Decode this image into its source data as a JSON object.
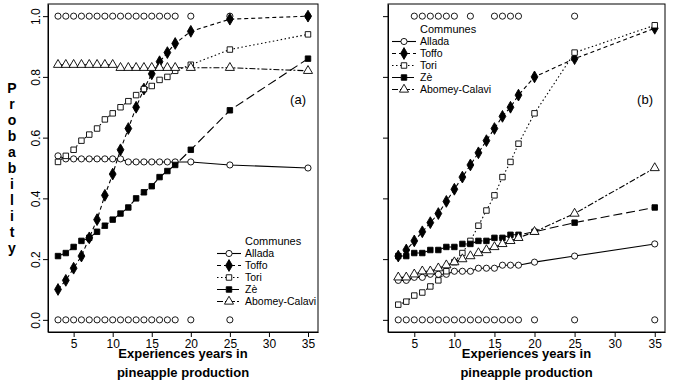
{
  "chart_data": [
    {
      "type": "line",
      "y_label": "Probability",
      "x_label": "Experiences years in\npineapple production",
      "annotation": "(a)",
      "legend_title": "Communes",
      "legend": "bottom-right",
      "grid": false,
      "xlim": [
        1.72,
        36.28
      ],
      "ylim": [
        -0.04,
        1.04
      ],
      "xticks": [
        5,
        10,
        15,
        20,
        25,
        30,
        35
      ],
      "yticks": [
        {
          "value": 0,
          "label": "0.0"
        },
        0.2,
        0.4,
        0.6,
        0.8,
        {
          "value": 1,
          "label": "1.0"
        }
      ],
      "x": [
        3,
        4,
        5,
        6,
        7,
        8,
        9,
        10,
        11,
        12,
        13,
        14,
        15,
        16,
        17,
        18,
        20,
        25,
        35
      ],
      "series": [
        {
          "name": "Allada",
          "color": "#000000",
          "marker": "circle-open",
          "line_style": "solid",
          "values": [
            0.54,
            0.53,
            0.53,
            0.53,
            0.53,
            0.53,
            0.53,
            0.53,
            0.53,
            0.52,
            0.52,
            0.52,
            0.52,
            0.52,
            0.52,
            0.52,
            0.52,
            0.51,
            0.5
          ]
        },
        {
          "name": "Toffo",
          "color": "#000000",
          "marker": "diamond",
          "line_style": "dashed",
          "values": [
            0.1,
            0.13,
            0.17,
            0.21,
            0.27,
            0.33,
            0.41,
            0.48,
            0.56,
            0.63,
            0.7,
            0.76,
            0.81,
            0.85,
            0.88,
            0.91,
            0.95,
            0.99,
            1
          ]
        },
        {
          "name": "Tori",
          "color": "#000000",
          "marker": "square-open",
          "line_style": "dotted",
          "values": [
            0.52,
            0.54,
            0.56,
            0.59,
            0.61,
            0.63,
            0.66,
            0.68,
            0.7,
            0.72,
            0.74,
            0.76,
            0.77,
            0.79,
            0.8,
            0.82,
            0.84,
            0.89,
            0.94
          ]
        },
        {
          "name": "Zè",
          "color": "#000000",
          "marker": "square",
          "line_style": "longdash",
          "values": [
            0.21,
            0.22,
            0.24,
            0.26,
            0.27,
            0.29,
            0.31,
            0.33,
            0.35,
            0.37,
            0.4,
            0.42,
            0.44,
            0.47,
            0.49,
            0.51,
            0.56,
            0.69,
            0.86
          ]
        },
        {
          "name": "Abomey-Calavi",
          "color": "#000000",
          "marker": "triangle-open",
          "line_style": "twodash",
          "values": [
            0.84,
            0.84,
            0.84,
            0.84,
            0.84,
            0.84,
            0.84,
            0.84,
            0.83,
            0.83,
            0.83,
            0.83,
            0.83,
            0.83,
            0.83,
            0.83,
            0.83,
            0.83,
            0.82
          ]
        }
      ],
      "observed": {
        "marker": "circle-open",
        "x": [
          3,
          4,
          5,
          6,
          7,
          8,
          9,
          10,
          11,
          12,
          13,
          14,
          15,
          16,
          17,
          18,
          20,
          25,
          35,
          3,
          4,
          5,
          6,
          7,
          8,
          9,
          10,
          11,
          12,
          13,
          14,
          15,
          16,
          17,
          18,
          20,
          25
        ],
        "values": [
          1,
          1,
          1,
          1,
          1,
          1,
          1,
          1,
          1,
          1,
          1,
          1,
          1,
          1,
          1,
          1,
          1,
          1,
          1,
          0,
          0,
          0,
          0,
          0,
          0,
          0,
          0,
          0,
          0,
          0,
          0,
          0,
          0,
          0,
          0,
          0,
          0
        ]
      }
    },
    {
      "type": "line",
      "x_label": "Experiences years in\npineapple production",
      "annotation": "(b)",
      "legend_title": "Communes",
      "legend": "top-left",
      "grid": false,
      "tick_labels": "x",
      "xlim": [
        1.72,
        36.28
      ],
      "ylim": [
        -0.04,
        1.04
      ],
      "xticks": [
        5,
        10,
        15,
        20,
        25,
        30,
        35
      ],
      "yticks": [
        0,
        0.2,
        0.4,
        0.6,
        0.8,
        1
      ],
      "x": [
        3,
        4,
        5,
        6,
        7,
        8,
        9,
        10,
        11,
        12,
        13,
        14,
        15,
        16,
        17,
        18,
        20,
        25,
        35
      ],
      "series": [
        {
          "name": "Allada",
          "color": "#000000",
          "marker": "circle-open",
          "line_style": "solid",
          "values": [
            0.13,
            0.13,
            0.14,
            0.14,
            0.15,
            0.15,
            0.15,
            0.16,
            0.16,
            0.16,
            0.17,
            0.17,
            0.17,
            0.18,
            0.18,
            0.18,
            0.19,
            0.21,
            0.25
          ]
        },
        {
          "name": "Toffo",
          "color": "#000000",
          "marker": "diamond",
          "line_style": "dashed",
          "values": [
            0.21,
            0.23,
            0.26,
            0.29,
            0.32,
            0.35,
            0.39,
            0.43,
            0.47,
            0.51,
            0.55,
            0.59,
            0.63,
            0.67,
            0.7,
            0.74,
            0.8,
            0.86,
            0.96
          ]
        },
        {
          "name": "Tori",
          "color": "#000000",
          "marker": "square-open",
          "line_style": "dotted",
          "values": [
            0.05,
            0.06,
            0.08,
            0.09,
            0.11,
            0.13,
            0.16,
            0.19,
            0.22,
            0.26,
            0.31,
            0.36,
            0.41,
            0.47,
            0.52,
            0.58,
            0.68,
            0.88,
            0.97
          ]
        },
        {
          "name": "Zè",
          "color": "#000000",
          "marker": "square",
          "line_style": "longdash",
          "values": [
            0.21,
            0.21,
            0.22,
            0.22,
            0.23,
            0.23,
            0.24,
            0.24,
            0.25,
            0.25,
            0.26,
            0.26,
            0.27,
            0.27,
            0.28,
            0.28,
            0.29,
            0.32,
            0.37
          ]
        },
        {
          "name": "Abomey-Calavi",
          "color": "#000000",
          "marker": "triangle-open",
          "line_style": "twodash",
          "values": [
            0.14,
            0.14,
            0.15,
            0.16,
            0.16,
            0.17,
            0.18,
            0.19,
            0.2,
            0.21,
            0.22,
            0.23,
            0.24,
            0.25,
            0.26,
            0.27,
            0.29,
            0.35,
            0.5
          ]
        }
      ],
      "observed": {
        "marker": "circle-open",
        "x": [
          5,
          6,
          7,
          8,
          9,
          10,
          12,
          15,
          16,
          17,
          18,
          25,
          3,
          4,
          5,
          6,
          7,
          8,
          9,
          10,
          11,
          12,
          13,
          14,
          15,
          16,
          17,
          18,
          20,
          25,
          35
        ],
        "values": [
          1,
          1,
          1,
          1,
          1,
          1,
          1,
          1,
          1,
          1,
          1,
          1,
          0,
          0,
          0,
          0,
          0,
          0,
          0,
          0,
          0,
          0,
          0,
          0,
          0,
          0,
          0,
          0,
          0,
          0,
          0
        ]
      }
    }
  ]
}
